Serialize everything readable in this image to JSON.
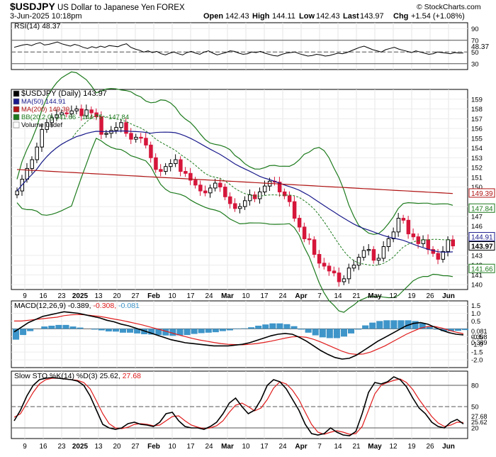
{
  "header": {
    "symbol": "$USDJPY",
    "name": "US Dollar to Japanese Yen",
    "exchange": "FOREX",
    "date_line": "3-Jun-2025 10:18pm",
    "watermark": "© StockCharts.com",
    "open_label": "Open",
    "open": "142.43",
    "high_label": "High",
    "high": "144.11",
    "low_label": "Low",
    "low": "142.43",
    "last_label": "Last",
    "last": "143.97",
    "chg_label": "Chg",
    "chg": "+1.54 (+1.08%)"
  },
  "colors": {
    "candle_up": "#000000",
    "candle_down": "#d6163b",
    "ma50": "#1a1a8c",
    "ma200": "#b01313",
    "bb": "#1d7a1d",
    "bb_mid": "#1d7a1d",
    "macd_hist": "#3e95c9",
    "macd_line": "#000000",
    "macd_signal": "#e01b1b",
    "sto_k": "#000000",
    "sto_d": "#e01b1b"
  },
  "chart_data": [
    {
      "type": "line",
      "panel": "RSI",
      "title": "RSI(14) 48.37",
      "ylim": [
        20,
        100
      ],
      "y_ticks": [
        "90",
        "70",
        "50",
        "30"
      ],
      "reference_lines": [
        70,
        50,
        30
      ],
      "last_value_tag": "48.37",
      "series": [
        {
          "name": "RSI(14)",
          "values": [
            58,
            60,
            62,
            63,
            61,
            64,
            66,
            62,
            63,
            65,
            67,
            64,
            62,
            60,
            63,
            61,
            58,
            56,
            59,
            57,
            60,
            58,
            61,
            60,
            59,
            62,
            64,
            58,
            55,
            53,
            50,
            52,
            49,
            51,
            47,
            45,
            48,
            50,
            47,
            45,
            49,
            51,
            48,
            46,
            50,
            52,
            48,
            45,
            47,
            49,
            52,
            51,
            48,
            46,
            47,
            50,
            49,
            51,
            48,
            46,
            44,
            43,
            46,
            48,
            49,
            50,
            47,
            45,
            43,
            44,
            46,
            45,
            43,
            44,
            46,
            48,
            47,
            49,
            52,
            55,
            58,
            60,
            57,
            54,
            52,
            50,
            54,
            56,
            58,
            55,
            53,
            51,
            49,
            52,
            50,
            48,
            46,
            47,
            50,
            49,
            48,
            47,
            49,
            48,
            48.37
          ]
        }
      ]
    },
    {
      "type": "candlestick",
      "panel": "Price",
      "legend": [
        {
          "label": "$USDJPY (Daily) 143.97"
        },
        {
          "label": "MA(50) 144.91"
        },
        {
          "label": "MA(200) 149.39"
        },
        {
          "label": "BB(20,2.0) 141.66 - 144.75 - 147.84"
        },
        {
          "label": "Volume undef"
        }
      ],
      "ylim": [
        139.5,
        160
      ],
      "y_ticks": [
        "159",
        "158",
        "157",
        "156",
        "155",
        "154",
        "153",
        "152",
        "151",
        "150",
        "148",
        "147",
        "146",
        "145",
        "143",
        "142",
        "141",
        "140"
      ],
      "price_tags": [
        {
          "label": "149.39",
          "value": 149.39
        },
        {
          "label": "147.84",
          "value": 147.84
        },
        {
          "label": "144.91",
          "value": 144.91
        },
        {
          "label": "143.97",
          "value": 143.97
        },
        {
          "label": "141.66",
          "value": 141.66
        }
      ],
      "x_tick_labels": [
        "9",
        "16",
        "23",
        "2025",
        "13",
        "20",
        "27",
        "Feb",
        "10",
        "17",
        "24",
        "Mar",
        "10",
        "17",
        "24",
        "Apr",
        "7",
        "14",
        "21",
        "May",
        "12",
        "19",
        "26",
        "Jun"
      ],
      "closes": [
        149.6,
        150.8,
        151.9,
        152.8,
        154.1,
        155.9,
        156.6,
        157.1,
        157.4,
        157.6,
        157.5,
        157.8,
        158.0,
        157.3,
        157.9,
        157.6,
        157.2,
        155.4,
        155.5,
        155.8,
        156.1,
        156.6,
        155.5,
        154.9,
        155.1,
        155.0,
        154.3,
        153.0,
        151.8,
        151.6,
        152.1,
        152.4,
        152.8,
        151.6,
        151.4,
        150.7,
        150.2,
        149.6,
        149.4,
        149.9,
        150.4,
        150.0,
        149.0,
        148.3,
        147.8,
        148.0,
        148.6,
        149.2,
        148.8,
        149.5,
        150.1,
        150.6,
        150.5,
        149.5,
        149.1,
        148.5,
        146.8,
        145.9,
        144.7,
        144.6,
        143.1,
        142.2,
        141.9,
        141.4,
        141.2,
        140.3,
        140.6,
        141.7,
        142.0,
        142.8,
        143.5,
        143.6,
        142.5,
        142.7,
        143.9,
        144.7,
        145.4,
        146.8,
        146.6,
        145.2,
        144.9,
        144.2,
        144.6,
        143.6,
        143.2,
        142.6,
        143.4,
        144.6,
        143.97
      ]
    },
    {
      "type": "line",
      "panel": "MACD",
      "title": "MACD(12,26,9) -0.389, -0.308, -0.081",
      "title_parts": [
        "MACD(12,26,9)",
        "-0.389",
        "-0.308",
        "-0.081"
      ],
      "ylim": [
        -2.5,
        1.8
      ],
      "y_ticks": [
        "1.5",
        "1.0",
        "0.5",
        "-0.5",
        "-1.0",
        "-1.5",
        "-2.0"
      ],
      "value_tags": [
        "0.081",
        "0.308",
        "0.389"
      ],
      "series": [
        {
          "name": "MACD",
          "values": [
            -0.2,
            0.1,
            0.4,
            0.6,
            0.8,
            0.9,
            1.0,
            1.1,
            1.05,
            1.0,
            0.9,
            0.8,
            0.7,
            0.55,
            0.45,
            0.3,
            0.2,
            0.05,
            -0.1,
            -0.25,
            -0.4,
            -0.55,
            -0.7,
            -0.8,
            -0.9,
            -0.95,
            -1.0,
            -1.05,
            -1.1,
            -1.1,
            -1.1,
            -1.05,
            -1.0,
            -0.9,
            -0.75,
            -0.6,
            -0.45,
            -0.35,
            -0.3,
            -0.35,
            -0.55,
            -0.8,
            -1.1,
            -1.4,
            -1.65,
            -1.85,
            -1.95,
            -1.9,
            -1.7,
            -1.4,
            -1.1,
            -0.8,
            -0.55,
            -0.3,
            -0.05,
            0.2,
            0.35,
            0.4,
            0.3,
            0.1,
            -0.1,
            -0.25,
            -0.35,
            -0.39
          ]
        },
        {
          "name": "Signal",
          "values": [
            0.5,
            0.5,
            0.55,
            0.6,
            0.65,
            0.7,
            0.75,
            0.85,
            0.9,
            0.92,
            0.9,
            0.85,
            0.8,
            0.72,
            0.63,
            0.55,
            0.45,
            0.35,
            0.25,
            0.12,
            0.0,
            -0.12,
            -0.25,
            -0.38,
            -0.5,
            -0.62,
            -0.72,
            -0.8,
            -0.88,
            -0.95,
            -1.0,
            -1.02,
            -1.03,
            -1.0,
            -0.95,
            -0.88,
            -0.8,
            -0.7,
            -0.6,
            -0.52,
            -0.5,
            -0.55,
            -0.68,
            -0.85,
            -1.05,
            -1.25,
            -1.45,
            -1.6,
            -1.65,
            -1.62,
            -1.5,
            -1.3,
            -1.1,
            -0.85,
            -0.6,
            -0.35,
            -0.15,
            0.05,
            0.15,
            0.15,
            0.05,
            -0.1,
            -0.22,
            -0.31
          ]
        },
        {
          "name": "Histogram",
          "values": [
            -0.7,
            -0.4,
            -0.15,
            0.0,
            0.15,
            0.2,
            0.25,
            0.25,
            0.15,
            0.08,
            0.0,
            -0.05,
            -0.1,
            -0.17,
            -0.18,
            -0.25,
            -0.25,
            -0.3,
            -0.35,
            -0.37,
            -0.4,
            -0.43,
            -0.45,
            -0.42,
            -0.4,
            -0.33,
            -0.28,
            -0.25,
            -0.22,
            -0.15,
            -0.1,
            -0.03,
            0.03,
            0.1,
            0.2,
            0.28,
            0.35,
            0.35,
            0.3,
            0.17,
            -0.05,
            -0.25,
            -0.42,
            -0.55,
            -0.6,
            -0.6,
            -0.5,
            -0.3,
            -0.05,
            0.22,
            0.4,
            0.5,
            0.55,
            0.55,
            0.55,
            0.55,
            0.5,
            0.35,
            0.15,
            -0.05,
            -0.15,
            -0.15,
            -0.13,
            -0.08
          ]
        }
      ]
    },
    {
      "type": "line",
      "panel": "Slow STO",
      "title": "Slow STO %K(14) %D(3) 25.62, 27.68",
      "title_parts": [
        "Slow STO %K(14) %D(3)",
        "25.62",
        "27.68"
      ],
      "ylim": [
        5,
        100
      ],
      "y_ticks": [
        "80",
        "50",
        "20"
      ],
      "reference_lines": [
        80,
        50,
        20
      ],
      "value_tags": [
        "27.68",
        "25.62"
      ],
      "series": [
        {
          "name": "%K",
          "values": [
            30,
            45,
            65,
            80,
            88,
            90,
            91,
            90,
            89,
            88,
            86,
            80,
            65,
            45,
            25,
            20,
            18,
            20,
            26,
            28,
            25,
            24,
            22,
            28,
            40,
            42,
            30,
            22,
            20,
            20,
            18,
            22,
            28,
            40,
            55,
            62,
            50,
            40,
            45,
            60,
            80,
            88,
            85,
            75,
            60,
            45,
            25,
            12,
            10,
            12,
            20,
            14,
            10,
            9,
            15,
            40,
            70,
            84,
            82,
            85,
            92,
            88,
            78,
            62,
            48,
            40,
            28,
            22,
            20,
            28,
            32,
            25.62
          ]
        },
        {
          "name": "%D",
          "values": [
            35,
            40,
            55,
            70,
            82,
            88,
            90,
            90,
            89,
            88,
            87,
            84,
            75,
            58,
            40,
            26,
            20,
            19,
            21,
            25,
            26,
            25,
            23,
            24,
            30,
            36,
            37,
            30,
            24,
            21,
            19,
            20,
            23,
            30,
            42,
            52,
            55,
            50,
            44,
            48,
            60,
            76,
            85,
            82,
            73,
            60,
            42,
            25,
            14,
            11,
            14,
            16,
            14,
            11,
            12,
            22,
            45,
            68,
            80,
            84,
            87,
            89,
            84,
            74,
            60,
            48,
            36,
            27,
            22,
            24,
            28,
            27.68
          ]
        }
      ]
    }
  ]
}
